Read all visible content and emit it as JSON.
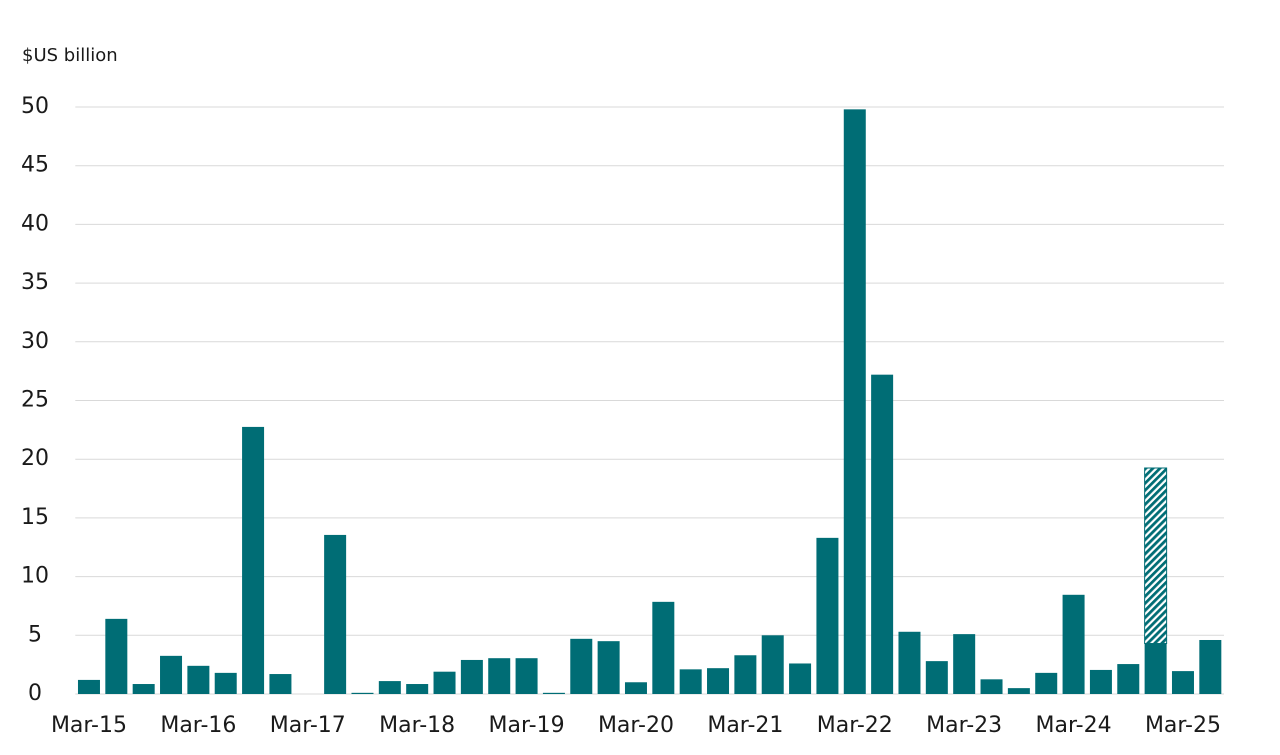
{
  "chart_data": {
    "type": "bar",
    "stacked": true,
    "y_label": "$US billion",
    "categories": [
      "Mar-15",
      null,
      null,
      null,
      "Mar-16",
      null,
      null,
      null,
      "Mar-17",
      null,
      null,
      null,
      "Mar-18",
      null,
      null,
      null,
      "Mar-19",
      null,
      null,
      null,
      "Mar-20",
      null,
      null,
      null,
      "Mar-21",
      null,
      null,
      null,
      "Mar-22",
      null,
      null,
      null,
      "Mar-23",
      null,
      null,
      null,
      "Mar-24",
      null,
      null,
      null,
      "Mar-25",
      null
    ],
    "series": [
      {
        "color": "#006d75",
        "values": [
          1.2,
          6.4,
          0.85,
          3.25,
          2.4,
          1.8,
          22.75,
          1.7,
          0,
          13.55,
          0.1,
          1.1,
          0.85,
          1.9,
          2.9,
          3.05,
          3.05,
          0.1,
          4.7,
          4.5,
          1.0,
          7.85,
          2.1,
          2.2,
          3.3,
          5.0,
          2.6,
          13.3,
          49.8,
          27.2,
          5.3,
          2.8,
          5.1,
          1.25,
          0.5,
          1.8,
          8.45,
          2.05,
          2.55,
          4.3,
          1.95,
          4.6
        ]
      },
      {
        "color": "#006d75",
        "hatch": true,
        "values": [
          null,
          null,
          null,
          null,
          null,
          null,
          null,
          null,
          null,
          null,
          null,
          null,
          null,
          null,
          null,
          null,
          null,
          null,
          null,
          null,
          null,
          null,
          null,
          null,
          null,
          null,
          null,
          null,
          null,
          null,
          null,
          null,
          null,
          null,
          null,
          null,
          null,
          null,
          null,
          14.95,
          null,
          null
        ]
      }
    ],
    "ylim": [
      0,
      50
    ],
    "yticks": [
      0,
      5,
      10,
      15,
      20,
      25,
      30,
      35,
      40,
      45,
      50
    ],
    "grid": true
  }
}
